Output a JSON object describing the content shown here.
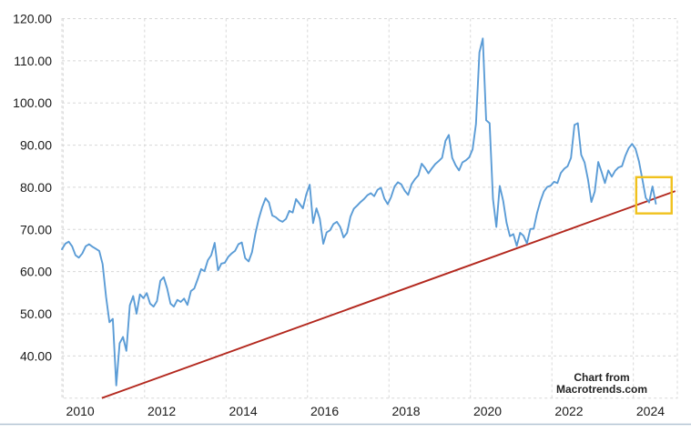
{
  "watermark": {
    "line1": "Chart from",
    "line2": "Macrotrends.com"
  },
  "colors": {
    "price_line": "#5b9cd6",
    "trend_line": "#b3281e",
    "highlight_box": "#f0c11d",
    "grid": "#d8d8d8",
    "axis_text": "#1a1a1a",
    "bottom_divider": "#b4c4d4",
    "background": "#ffffff"
  },
  "chart_data": {
    "type": "line",
    "title": "",
    "xlabel": "",
    "ylabel": "",
    "grid": true,
    "legend": false,
    "x_axis": {
      "range_years": [
        2009.55,
        2024.66
      ],
      "tick_years": [
        2010,
        2012,
        2014,
        2016,
        2018,
        2020,
        2022,
        2024
      ],
      "tick_labels": [
        "2010",
        "2012",
        "2014",
        "2016",
        "2018",
        "2020",
        "2022",
        "2024"
      ],
      "gridline_years": [
        2009.58,
        2011.58,
        2013.58,
        2015.58,
        2017.58,
        2019.58,
        2021.58,
        2023.58
      ]
    },
    "y_axis": {
      "range": [
        30,
        120
      ],
      "ticks": [
        40,
        50,
        60,
        70,
        80,
        90,
        100,
        110,
        120
      ],
      "tick_labels": [
        "40.00",
        "50.00",
        "60.00",
        "70.00",
        "80.00",
        "90.00",
        "100.00",
        "110.00",
        "120.00"
      ]
    },
    "series": [
      {
        "name": "price",
        "kind": "monthly",
        "start_year": 2009.55,
        "interval_years": 0.0833333,
        "values": [
          65.3,
          66.6,
          67.1,
          66.0,
          63.9,
          63.3,
          64.3,
          66.0,
          66.5,
          65.9,
          65.4,
          64.9,
          61.8,
          54.0,
          48.0,
          48.8,
          33.0,
          43.0,
          44.5,
          41.2,
          52.0,
          54.2,
          50.0,
          54.6,
          53.7,
          54.9,
          52.4,
          51.7,
          53.0,
          57.8,
          58.7,
          56.0,
          52.4,
          51.7,
          53.3,
          52.8,
          53.6,
          52.1,
          55.4,
          56.0,
          58.2,
          60.6,
          60.1,
          62.7,
          63.9,
          66.8,
          60.3,
          61.9,
          62.1,
          63.5,
          64.3,
          64.9,
          66.5,
          66.9,
          63.2,
          62.4,
          64.6,
          69.0,
          72.5,
          75.3,
          77.4,
          76.4,
          73.3,
          72.9,
          72.2,
          71.8,
          72.5,
          74.4,
          74.0,
          77.2,
          76.1,
          75.0,
          78.3,
          80.6,
          71.5,
          75.0,
          72.5,
          66.6,
          69.3,
          69.8,
          71.3,
          71.8,
          70.6,
          68.1,
          69.2,
          73.0,
          74.9,
          75.7,
          76.5,
          77.2,
          78.1,
          78.6,
          77.9,
          79.4,
          79.9,
          77.3,
          76.0,
          77.7,
          80.2,
          81.2,
          80.7,
          79.2,
          78.2,
          80.7,
          81.9,
          82.8,
          85.6,
          84.6,
          83.3,
          84.5,
          85.5,
          86.2,
          87.0,
          91.0,
          92.4,
          87.0,
          85.2,
          84.0,
          85.9,
          86.4,
          87.1,
          89.0,
          95.0,
          112.0,
          115.3,
          95.9,
          95.2,
          77.2,
          70.6,
          80.3,
          76.8,
          71.6,
          68.4,
          68.9,
          66.1,
          69.2,
          68.5,
          66.7,
          70.1,
          70.2,
          73.9,
          76.8,
          79.0,
          80.1,
          80.4,
          81.3,
          81.0,
          83.4,
          84.4,
          85.0,
          87.0,
          94.8,
          95.2,
          87.7,
          85.9,
          81.8,
          76.5,
          79.0,
          86.0,
          83.6,
          81.0,
          84.0,
          82.5,
          83.9,
          84.7,
          85.0,
          87.5,
          89.3,
          90.3,
          89.1,
          86.2,
          82.0,
          77.5,
          76.4,
          80.2,
          76.1
        ]
      },
      {
        "name": "support-trendline",
        "kind": "segment",
        "points": [
          [
            2010.53,
            30.0
          ],
          [
            2024.61,
            79.1
          ]
        ]
      }
    ],
    "annotation_box": {
      "year_start": 2023.65,
      "year_end": 2024.52,
      "value_low": 73.8,
      "value_high": 82.4
    }
  }
}
